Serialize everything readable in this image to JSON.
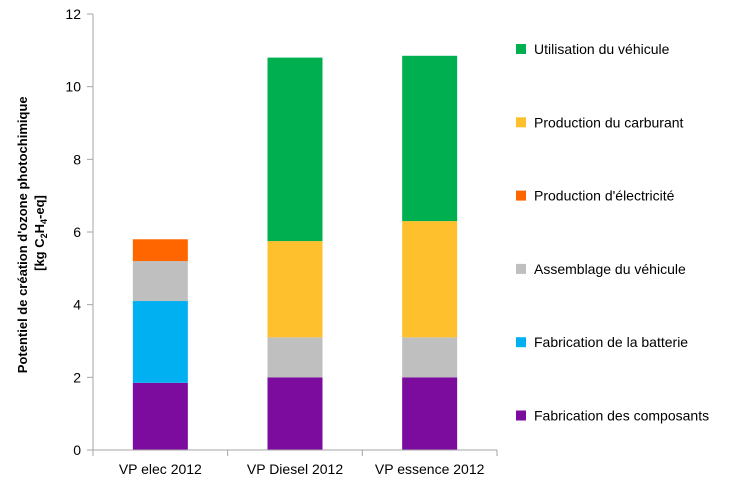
{
  "chart_data": {
    "type": "bar",
    "stacked": true,
    "categories": [
      "VP elec 2012",
      "VP Diesel 2012",
      "VP essence 2012"
    ],
    "ylabel_line1": "Potentiel de création d'ozone photochimique",
    "ylabel_line2": {
      "prefix": "[kg C",
      "sub1": "2",
      "mid": "H",
      "sub2": "4",
      "suffix": "-eq]"
    },
    "ylim": [
      0,
      12
    ],
    "yticks": [
      0,
      2,
      4,
      6,
      8,
      10,
      12
    ],
    "grid": false,
    "legend_position": "right",
    "series": [
      {
        "name": "Fabrication des composants",
        "color": "#7b0c9e",
        "values": [
          1.85,
          2.0,
          2.0
        ]
      },
      {
        "name": "Fabrication de la batterie",
        "color": "#00b0f0",
        "values": [
          2.25,
          0,
          0
        ]
      },
      {
        "name": "Assemblage du véhicule",
        "color": "#bfbfbf",
        "values": [
          1.1,
          1.1,
          1.1
        ]
      },
      {
        "name": "Production d'électricité",
        "color": "#ff6600",
        "values": [
          0.6,
          0,
          0
        ]
      },
      {
        "name": "Production du carburant",
        "color": "#ffc02e",
        "values": [
          0,
          2.65,
          3.2
        ]
      },
      {
        "name": "Utilisation du véhicule",
        "color": "#00b050",
        "values": [
          0,
          5.05,
          4.55
        ]
      }
    ]
  }
}
